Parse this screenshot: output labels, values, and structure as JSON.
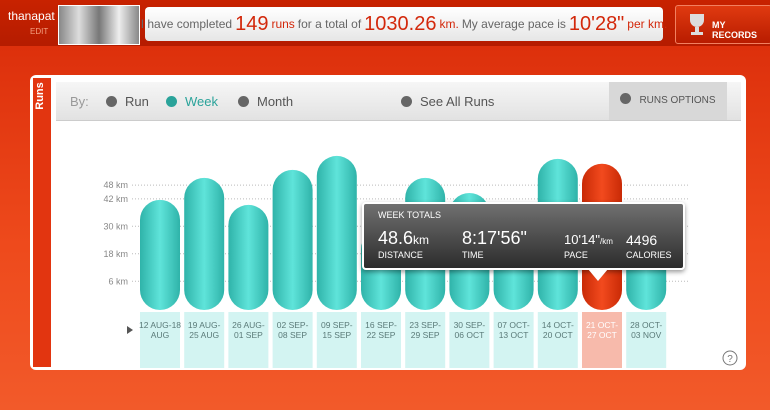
{
  "header": {
    "user": "thanapat",
    "edit": "EDIT",
    "stats": {
      "t1": "I have completed",
      "runs": 149,
      "t2": "runs",
      "t3": "for a total of",
      "distance": 1030.26,
      "t4": "km.",
      "t5": "My average pace is",
      "pace": "10'28\"",
      "t6": "per km."
    },
    "records": "MY RECORDS"
  },
  "tab": "Runs",
  "nav": {
    "by": "By:",
    "run": "Run",
    "week": "Week",
    "month": "Month",
    "all": "See All Runs",
    "options": "RUNS OPTIONS"
  },
  "chart_data": {
    "type": "bar",
    "categories": [
      [
        "12 AUG-18",
        "AUG"
      ],
      [
        "19 AUG-",
        "25 AUG"
      ],
      [
        "26 AUG-",
        "01 SEP"
      ],
      [
        "02 SEP-",
        "08 SEP"
      ],
      [
        "09 SEP-",
        "15 SEP"
      ],
      [
        "16 SEP-",
        "22 SEP"
      ],
      [
        "23 SEP-",
        "29 SEP"
      ],
      [
        "30 SEP-",
        "06 OCT"
      ],
      [
        "07 OCT-",
        "13 OCT"
      ],
      [
        "14 OCT-",
        "20 OCT"
      ],
      [
        "21 OCT-",
        "27 OCT"
      ],
      [
        "28 OCT-",
        "03 NOV"
      ]
    ],
    "values": [
      32.8,
      42.4,
      30.6,
      45.9,
      52,
      20,
      42.4,
      35.8,
      30.6,
      50.7,
      48.6,
      17.5
    ],
    "color": "#4fd4ca",
    "highlight_color": "#e8380e",
    "highlight": 10,
    "ylim": [
      0,
      60
    ],
    "yticks": [
      {
        "value": 6,
        "label": "6 km"
      },
      {
        "value": 18,
        "label": "18 km"
      },
      {
        "value": 30,
        "label": "30 km"
      },
      {
        "value": 42,
        "label": "42 km"
      },
      {
        "value": 48,
        "label": "48 km"
      }
    ],
    "grid": true
  },
  "tooltip": {
    "title": "WEEK TOTALS",
    "distance_unit": "km",
    "distance_label": "DISTANCE",
    "time": "8:17'56\"",
    "time_label": "TIME",
    "pace": "10'14\"",
    "pace_unit": "/km",
    "pace_label": "PACE",
    "calories": "4496",
    "calories_label": "CALORIES"
  },
  "help": "?"
}
